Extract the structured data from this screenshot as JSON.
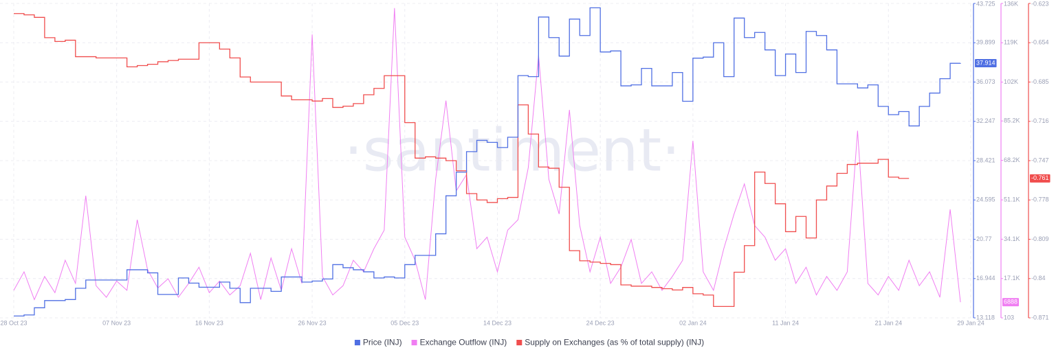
{
  "chart_data": {
    "type": "line",
    "watermark": "·santiment·",
    "x": [
      "28 Oct 23",
      "29 Oct 23",
      "30 Oct 23",
      "31 Oct 23",
      "01 Nov 23",
      "02 Nov 23",
      "03 Nov 23",
      "04 Nov 23",
      "05 Nov 23",
      "06 Nov 23",
      "07 Nov 23",
      "08 Nov 23",
      "09 Nov 23",
      "10 Nov 23",
      "11 Nov 23",
      "12 Nov 23",
      "13 Nov 23",
      "14 Nov 23",
      "15 Nov 23",
      "16 Nov 23",
      "17 Nov 23",
      "18 Nov 23",
      "19 Nov 23",
      "20 Nov 23",
      "21 Nov 23",
      "22 Nov 23",
      "23 Nov 23",
      "24 Nov 23",
      "25 Nov 23",
      "26 Nov 23",
      "27 Nov 23",
      "28 Nov 23",
      "29 Nov 23",
      "30 Nov 23",
      "01 Dec 23",
      "02 Dec 23",
      "03 Dec 23",
      "04 Dec 23",
      "05 Dec 23",
      "06 Dec 23",
      "07 Dec 23",
      "08 Dec 23",
      "09 Dec 23",
      "10 Dec 23",
      "11 Dec 23",
      "12 Dec 23",
      "13 Dec 23",
      "14 Dec 23",
      "15 Dec 23",
      "16 Dec 23",
      "17 Dec 23",
      "18 Dec 23",
      "19 Dec 23",
      "20 Dec 23",
      "21 Dec 23",
      "22 Dec 23",
      "23 Dec 23",
      "24 Dec 23",
      "25 Dec 23",
      "26 Dec 23",
      "27 Dec 23",
      "28 Dec 23",
      "29 Dec 23",
      "30 Dec 23",
      "31 Dec 23",
      "01 Jan 24",
      "02 Jan 24",
      "03 Jan 24",
      "04 Jan 24",
      "05 Jan 24",
      "06 Jan 24",
      "07 Jan 24",
      "08 Jan 24",
      "09 Jan 24",
      "10 Jan 24",
      "11 Jan 24",
      "12 Jan 24",
      "13 Jan 24",
      "14 Jan 24",
      "15 Jan 24",
      "16 Jan 24",
      "17 Jan 24",
      "18 Jan 24",
      "19 Jan 24",
      "20 Jan 24",
      "21 Jan 24",
      "22 Jan 24",
      "23 Jan 24",
      "24 Jan 24",
      "25 Jan 24",
      "26 Jan 24",
      "27 Jan 24",
      "28 Jan 24",
      "29 Jan 24"
    ],
    "series": [
      {
        "name": "Price (INJ)",
        "color": "#4f6fe3",
        "axis": "y",
        "step": true,
        "current_value": 37.914,
        "values": [
          13.3,
          13.4,
          14.1,
          14.8,
          14.8,
          14.9,
          16.0,
          16.8,
          16.8,
          16.8,
          16.8,
          17.8,
          17.8,
          17.5,
          15.4,
          15.4,
          17.0,
          16.5,
          16.1,
          16.1,
          16.6,
          16.0,
          14.6,
          16.0,
          16.0,
          15.7,
          17.1,
          17.1,
          16.6,
          16.7,
          16.9,
          18.3,
          18.0,
          17.8,
          17.6,
          17.0,
          17.1,
          17.0,
          18.3,
          19.2,
          19.2,
          21.3,
          25.0,
          27.3,
          29.3,
          30.4,
          30.2,
          29.7,
          30.7,
          36.7,
          36.6,
          42.4,
          40.4,
          38.6,
          42.2,
          40.6,
          43.3,
          39.0,
          39.1,
          35.7,
          35.8,
          37.4,
          35.7,
          35.7,
          37.0,
          34.2,
          38.4,
          38.5,
          39.9,
          36.6,
          42.3,
          40.4,
          40.9,
          39.2,
          36.7,
          38.8,
          37.0,
          41.0,
          40.6,
          39.2,
          35.9,
          35.9,
          35.5,
          35.8,
          33.7,
          32.9,
          33.2,
          31.8,
          33.7,
          35.0,
          36.4,
          37.9,
          37.914,
          null
        ]
      },
      {
        "name": "Exchange Outflow (INJ)",
        "color": "#f07ef2",
        "axis": "y2",
        "step": false,
        "current_value": 6888,
        "values": [
          12000,
          20000,
          8000,
          18000,
          11000,
          25000,
          15000,
          52900,
          14000,
          9000,
          16000,
          12000,
          42500,
          21000,
          13000,
          17000,
          9000,
          15000,
          22000,
          11000,
          16000,
          10000,
          14000,
          28000,
          8000,
          26000,
          12000,
          30000,
          15000,
          122600,
          18000,
          10000,
          14000,
          25000,
          20000,
          30000,
          38000,
          134000,
          35000,
          25000,
          8000,
          60000,
          94000,
          55000,
          62000,
          30000,
          35000,
          20000,
          38000,
          42500,
          65000,
          113700,
          60000,
          45000,
          90000,
          40000,
          20000,
          35000,
          15000,
          22000,
          34000,
          15000,
          20000,
          12000,
          18000,
          25000,
          76600,
          20000,
          12000,
          30000,
          45000,
          58000,
          40000,
          35000,
          25000,
          30000,
          15000,
          22000,
          10000,
          18000,
          12000,
          20000,
          81000,
          15000,
          10000,
          18000,
          12000,
          25000,
          14000,
          20000,
          9000,
          47000,
          6888,
          null
        ]
      },
      {
        "name": "Supply on Exchanges (as % of total supply) (INJ)",
        "color": "#f04d4d",
        "axis": "y3",
        "step": true,
        "current_value": -0.761,
        "values": [
          -0.631,
          -0.632,
          -0.634,
          -0.65,
          -0.653,
          -0.652,
          -0.665,
          -0.665,
          -0.666,
          -0.666,
          -0.666,
          -0.673,
          -0.672,
          -0.671,
          -0.669,
          -0.668,
          -0.667,
          -0.667,
          -0.654,
          -0.654,
          -0.659,
          -0.666,
          -0.681,
          -0.685,
          -0.685,
          -0.685,
          -0.696,
          -0.699,
          -0.699,
          -0.7,
          -0.698,
          -0.705,
          -0.704,
          -0.702,
          -0.695,
          -0.69,
          -0.68,
          -0.68,
          -0.717,
          -0.745,
          -0.744,
          -0.745,
          -0.747,
          -0.755,
          -0.773,
          -0.778,
          -0.78,
          -0.777,
          -0.776,
          -0.703,
          -0.726,
          -0.752,
          -0.753,
          -0.768,
          -0.818,
          -0.826,
          -0.827,
          -0.828,
          -0.829,
          -0.845,
          -0.846,
          -0.846,
          -0.847,
          -0.848,
          -0.849,
          -0.847,
          -0.852,
          -0.853,
          -0.862,
          -0.862,
          -0.835,
          -0.814,
          -0.756,
          -0.765,
          -0.781,
          -0.803,
          -0.791,
          -0.808,
          -0.778,
          -0.767,
          -0.757,
          -0.75,
          -0.749,
          -0.749,
          -0.746,
          -0.76,
          -0.761,
          -0.761,
          null,
          null,
          null,
          null,
          null,
          null
        ]
      }
    ],
    "ylim": [
      13.118,
      43.725
    ],
    "yticks": [
      13.118,
      16.944,
      20.77,
      24.595,
      28.421,
      32.247,
      36.073,
      39.899,
      43.725
    ],
    "y2lim": [
      103,
      136000
    ],
    "y2ticks": [
      103,
      {
        "value": 17100,
        "label": "17.1K"
      },
      {
        "value": 34100,
        "label": "34.1K"
      },
      {
        "value": 51100,
        "label": "51.1K"
      },
      {
        "value": 68200,
        "label": "68.2K"
      },
      {
        "value": 85200,
        "label": "85.2K"
      },
      {
        "value": 102000,
        "label": "102K"
      },
      {
        "value": 119000,
        "label": "119K"
      },
      {
        "value": 136000,
        "label": "136K"
      }
    ],
    "y3lim": [
      -0.871,
      -0.623
    ],
    "y3ticks": [
      -0.871,
      -0.84,
      -0.809,
      -0.778,
      -0.747,
      -0.716,
      -0.685,
      -0.654,
      -0.623
    ],
    "grid": true,
    "legend": "bottom"
  }
}
